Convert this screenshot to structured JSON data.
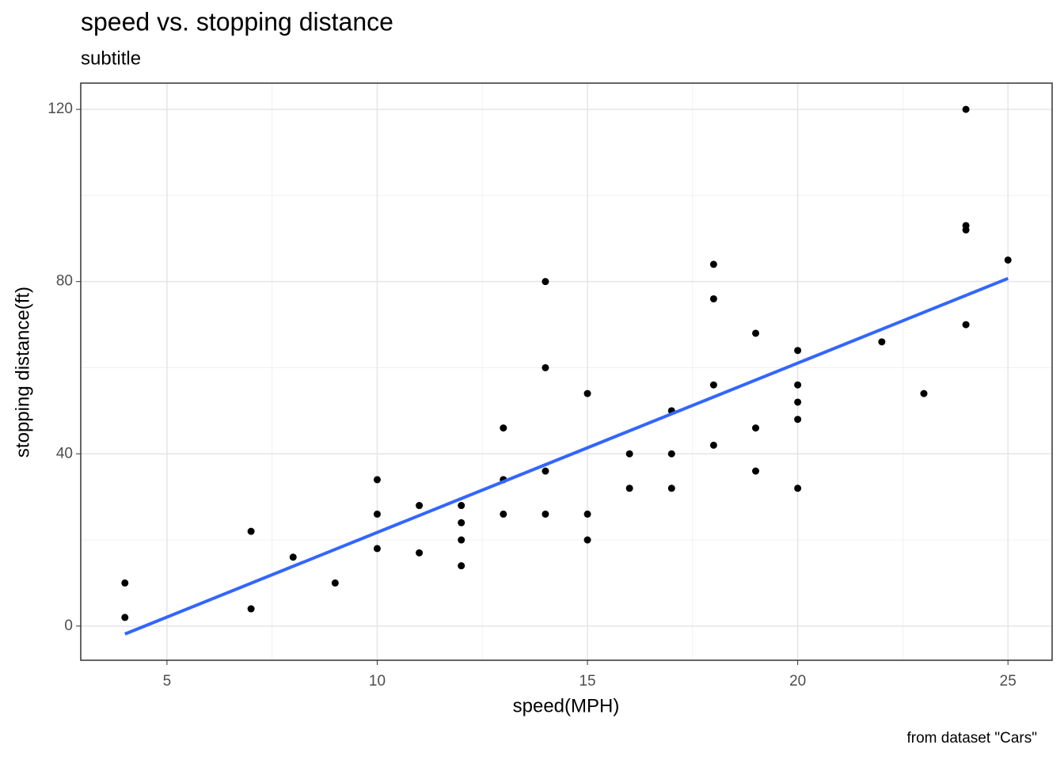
{
  "chart_data": {
    "type": "scatter",
    "title": "speed vs. stopping distance",
    "subtitle": "subtitle",
    "caption": "from dataset \"Cars\"",
    "x_label": "speed(MPH)",
    "y_label": "stopping distance(ft)",
    "xlim": [
      2.95,
      26.05
    ],
    "ylim": [
      -7.94,
      126.09
    ],
    "xticks": [
      5,
      10,
      15,
      20,
      25
    ],
    "yticks": [
      0,
      40,
      80,
      120
    ],
    "x_minor_ticks": [
      7.5,
      12.5,
      17.5,
      22.5
    ],
    "y_minor_ticks": [
      20,
      60,
      100
    ],
    "grid": true,
    "series": [
      {
        "type": "scatter",
        "color": "#000000",
        "x": [
          4,
          4,
          7,
          7,
          8,
          9,
          10,
          10,
          10,
          11,
          11,
          12,
          12,
          12,
          12,
          13,
          13,
          13,
          13,
          14,
          14,
          14,
          14,
          15,
          15,
          15,
          16,
          16,
          17,
          17,
          17,
          18,
          18,
          18,
          18,
          19,
          19,
          19,
          20,
          20,
          20,
          20,
          20,
          22,
          23,
          24,
          24,
          24,
          24,
          25
        ],
        "values": [
          2,
          10,
          4,
          22,
          16,
          10,
          18,
          26,
          34,
          17,
          28,
          14,
          20,
          24,
          28,
          26,
          34,
          34,
          46,
          26,
          36,
          60,
          80,
          20,
          26,
          54,
          32,
          40,
          32,
          40,
          50,
          42,
          56,
          76,
          84,
          36,
          46,
          68,
          32,
          48,
          52,
          56,
          64,
          66,
          54,
          70,
          92,
          93,
          120,
          85
        ]
      },
      {
        "type": "line",
        "color": "#3366ff",
        "x": [
          4,
          25
        ],
        "values": [
          -1.85,
          80.73
        ]
      }
    ]
  }
}
